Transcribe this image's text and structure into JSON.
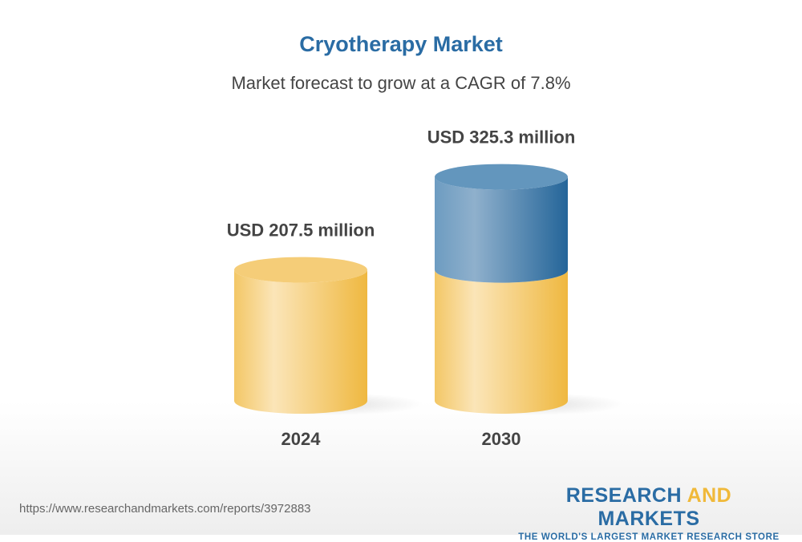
{
  "chart_data": {
    "type": "bar",
    "style": "3d-cylinder",
    "title": "Cryotherapy Market",
    "subtitle": "Market forecast to grow at a CAGR of 7.8%",
    "categories": [
      "2024",
      "2030"
    ],
    "values": [
      207.5,
      325.3
    ],
    "data_labels": [
      "USD 207.5 million",
      "USD 325.3 million"
    ],
    "unit": "USD million",
    "colors": {
      "base": "#f2c25a",
      "growth": "#2a6ca4"
    },
    "grid": false
  },
  "footer": {
    "url": "https://www.researchandmarkets.com/reports/3972883",
    "logo_line1_a": "RESEARCH ",
    "logo_line1_b": "AND",
    "logo_line1_c": " MARKETS",
    "logo_line2": "THE WORLD'S LARGEST MARKET RESEARCH STORE"
  }
}
